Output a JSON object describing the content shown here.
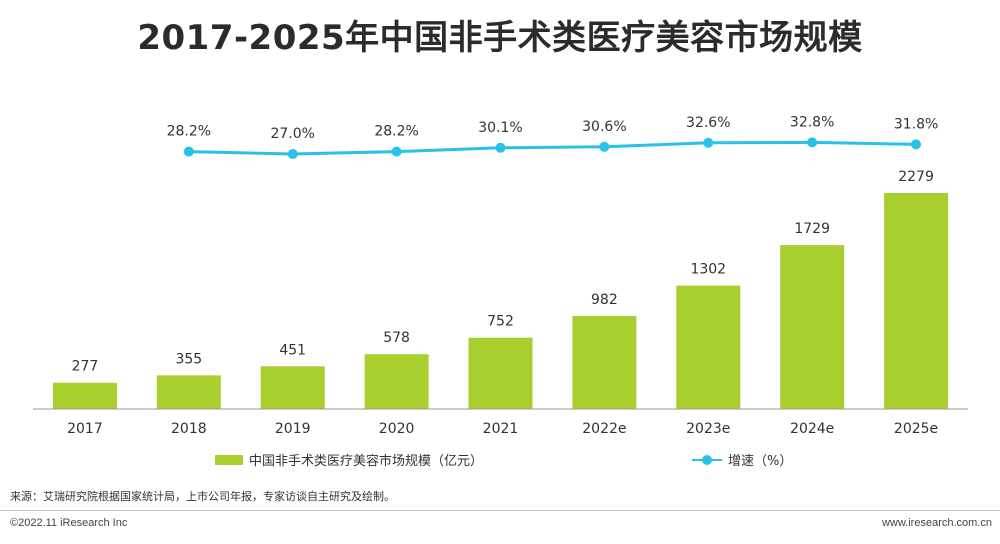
{
  "chart_data": {
    "type": "bar",
    "title": "2017-2025年中国非手术类医疗美容市场规模",
    "categories": [
      "2017",
      "2018",
      "2019",
      "2020",
      "2021",
      "2022e",
      "2023e",
      "2024e",
      "2025e"
    ],
    "series": [
      {
        "name": "中国非手术类医疗美容市场规模（亿元）",
        "type": "bar",
        "values": [
          277,
          355,
          451,
          578,
          752,
          982,
          1302,
          1729,
          2279
        ],
        "labels": [
          "277",
          "355",
          "451",
          "578",
          "752",
          "982",
          "1302",
          "1729",
          "2279"
        ],
        "color": "#a9cf2f"
      },
      {
        "name": "增速（%）",
        "type": "line",
        "x": [
          "2018",
          "2019",
          "2020",
          "2021",
          "2022e",
          "2023e",
          "2024e",
          "2025e"
        ],
        "values": [
          28.2,
          27.0,
          28.2,
          30.1,
          30.6,
          32.6,
          32.8,
          31.8
        ],
        "labels": [
          "28.2%",
          "27.0%",
          "28.2%",
          "30.1%",
          "30.6%",
          "32.6%",
          "32.8%",
          "31.8%"
        ],
        "color": "#29c1e8"
      }
    ],
    "ylim": [
      0,
      2279
    ],
    "legend_position": "bottom",
    "grid": false
  },
  "source": "来源：艾瑞研究院根据国家统计局，上市公司年报，专家访谈自主研究及绘制。",
  "footer": {
    "copyright": "©2022.11 iResearch Inc",
    "website": "www.iresearch.com.cn"
  },
  "colors": {
    "bar": "#a9cf2f",
    "line": "#29c1e8",
    "axis": "#999999"
  }
}
